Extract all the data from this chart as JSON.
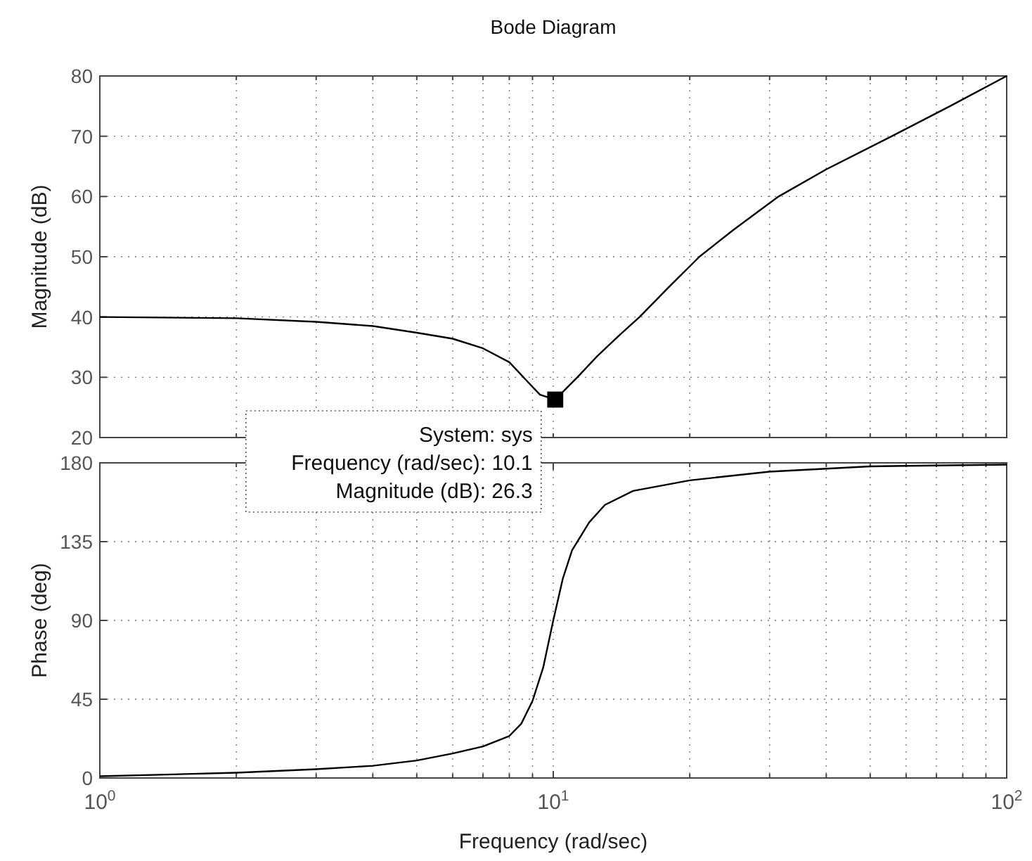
{
  "chart_data": [
    {
      "type": "line",
      "title": "Bode Diagram",
      "ylabel": "Magnitude (dB)",
      "log": "x",
      "grid": true,
      "tick_labels": "y",
      "xlim": [
        1,
        100
      ],
      "ylim": [
        20,
        80
      ],
      "yticks": [
        20,
        30,
        40,
        50,
        60,
        70,
        80
      ],
      "xticks": [
        {
          "value": 1,
          "label": null
        },
        {
          "value": 2,
          "label": null
        },
        {
          "value": 3,
          "label": null
        },
        {
          "value": 4,
          "label": null
        },
        {
          "value": 5,
          "label": null
        },
        {
          "value": 6,
          "label": null
        },
        {
          "value": 7,
          "label": null
        },
        {
          "value": 8,
          "label": null
        },
        {
          "value": 9,
          "label": null
        },
        {
          "value": 10,
          "label": null
        },
        {
          "value": 20,
          "label": null
        },
        {
          "value": 30,
          "label": null
        },
        {
          "value": 40,
          "label": null
        },
        {
          "value": 50,
          "label": null
        },
        {
          "value": 60,
          "label": null
        },
        {
          "value": 70,
          "label": null
        },
        {
          "value": 80,
          "label": null
        },
        {
          "value": 90,
          "label": null
        },
        {
          "value": 100,
          "label": null
        }
      ],
      "series": [
        {
          "color": "#000000",
          "line_style": "solid",
          "marker": "none",
          "x": [
            1,
            2,
            3,
            4,
            5,
            6,
            7,
            8,
            9,
            9.35,
            10.1,
            10.8,
            11.3,
            12.5,
            14,
            15.5,
            18,
            21,
            25,
            31.4,
            40,
            55.8,
            75,
            100
          ],
          "values": [
            40,
            39.8,
            39.2,
            38.5,
            37.4,
            36.4,
            34.8,
            32.5,
            28.4,
            27.1,
            26.3,
            28.5,
            30,
            33.5,
            37,
            40,
            45,
            50,
            54.5,
            60,
            64.5,
            70,
            75,
            80
          ]
        },
        {
          "type": "scatter",
          "color": "#000000",
          "marker": "square",
          "x": [
            10.1
          ],
          "values": [
            26.3
          ]
        }
      ],
      "annotations": [
        {
          "text": "System: sys\nFrequency (rad/sec): 10.1\nMagnitude (dB): 26.3",
          "x": 10.1,
          "y": 26.3
        }
      ]
    },
    {
      "type": "line",
      "ylabel": "Phase (deg)",
      "xlabel": "Frequency  (rad/sec)",
      "log": "x",
      "grid": true,
      "xlim": [
        1,
        100
      ],
      "ylim": [
        0,
        180
      ],
      "yticks": [
        0,
        45,
        90,
        135,
        180
      ],
      "xticks": [
        {
          "value": 1,
          "label": "10$^{0}$"
        },
        {
          "value": 2,
          "label": null
        },
        {
          "value": 3,
          "label": null
        },
        {
          "value": 4,
          "label": null
        },
        {
          "value": 5,
          "label": null
        },
        {
          "value": 6,
          "label": null
        },
        {
          "value": 7,
          "label": null
        },
        {
          "value": 8,
          "label": null
        },
        {
          "value": 9,
          "label": null
        },
        {
          "value": 10,
          "label": "10$^{1}$"
        },
        {
          "value": 20,
          "label": null
        },
        {
          "value": 30,
          "label": null
        },
        {
          "value": 40,
          "label": null
        },
        {
          "value": 50,
          "label": null
        },
        {
          "value": 60,
          "label": null
        },
        {
          "value": 70,
          "label": null
        },
        {
          "value": 80,
          "label": null
        },
        {
          "value": 90,
          "label": null
        },
        {
          "value": 100,
          "label": "10$^{2}$"
        }
      ],
      "series": [
        {
          "color": "#000000",
          "line_style": "solid",
          "marker": "none",
          "x": [
            1,
            2,
            3,
            4,
            5,
            6,
            7,
            8,
            8.5,
            9,
            9.5,
            10,
            10.5,
            11,
            12,
            13,
            15,
            20,
            30,
            50,
            100
          ],
          "values": [
            1,
            3,
            5,
            7,
            10,
            14,
            18,
            24,
            31,
            44,
            63,
            90,
            114,
            130,
            146,
            156,
            164,
            170,
            175,
            178,
            179
          ]
        }
      ]
    }
  ]
}
